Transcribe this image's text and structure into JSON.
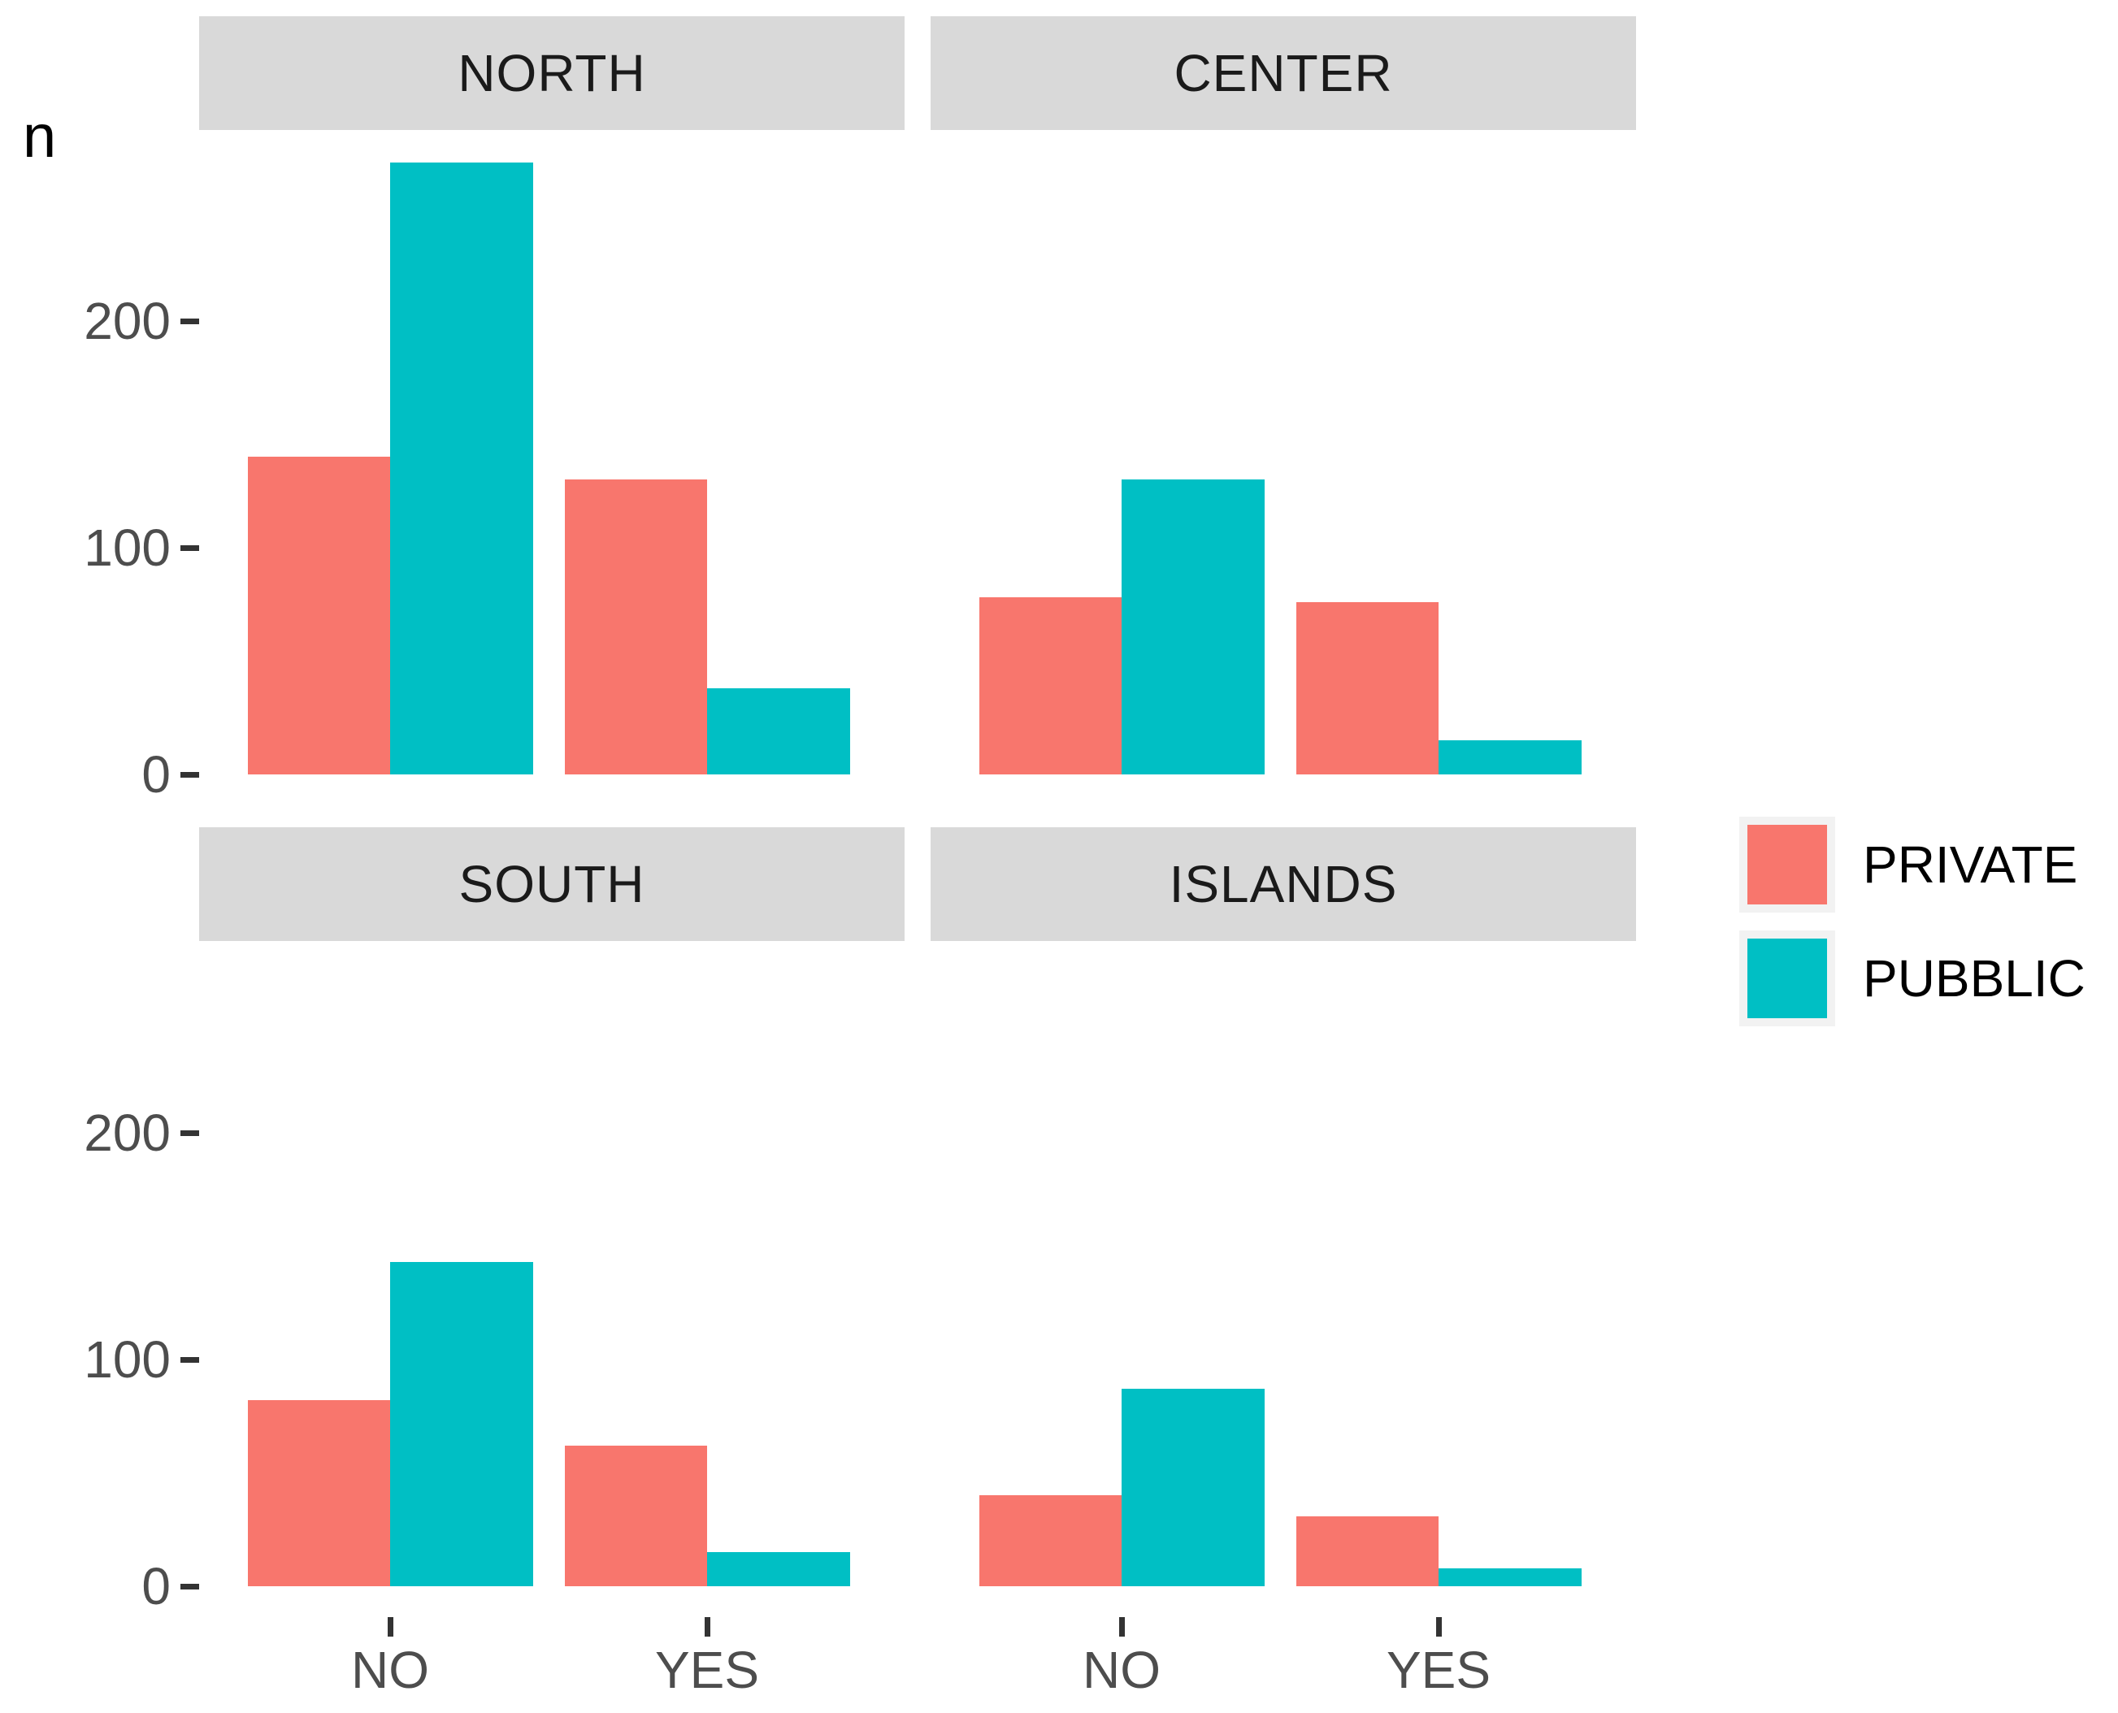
{
  "chart_data": {
    "type": "bar",
    "title": "",
    "ylabel": "n",
    "xlabel": "",
    "categories": [
      "NO",
      "YES"
    ],
    "series_names": [
      "PRIVATE",
      "PUBBLIC"
    ],
    "colors": {
      "PRIVATE": "#F8766D",
      "PUBBLIC": "#00BFC4"
    },
    "y_ticks": [
      "0",
      "100",
      "200"
    ],
    "y_tick_values": [
      0,
      100,
      200
    ],
    "ylim": [
      0,
      283
    ],
    "grid": false,
    "legend_position": "right",
    "facet_layout": {
      "rows": 2,
      "cols": 2
    },
    "facets": [
      {
        "label": "NORTH",
        "series": [
          {
            "name": "PRIVATE",
            "values": [
              140,
              130
            ]
          },
          {
            "name": "PUBBLIC",
            "values": [
              270,
              38
            ]
          }
        ]
      },
      {
        "label": "CENTER",
        "series": [
          {
            "name": "PRIVATE",
            "values": [
              78,
              76
            ]
          },
          {
            "name": "PUBBLIC",
            "values": [
              130,
              15
            ]
          }
        ]
      },
      {
        "label": "SOUTH",
        "series": [
          {
            "name": "PRIVATE",
            "values": [
              82,
              62
            ]
          },
          {
            "name": "PUBBLIC",
            "values": [
              143,
              15
            ]
          }
        ]
      },
      {
        "label": "ISLANDS",
        "series": [
          {
            "name": "PRIVATE",
            "values": [
              40,
              31
            ]
          },
          {
            "name": "PUBBLIC",
            "values": [
              87,
              8
            ]
          }
        ]
      }
    ]
  },
  "legend": {
    "items": [
      {
        "label": "PRIVATE",
        "color": "#F8766D"
      },
      {
        "label": "PUBBLIC",
        "color": "#00BFC4"
      }
    ]
  }
}
